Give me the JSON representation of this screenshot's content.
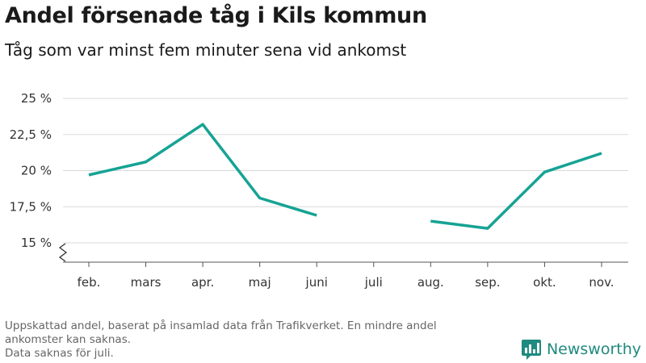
{
  "header": {
    "title": "Andel försenade tåg i Kils kommun",
    "subtitle": "Tåg som var minst fem minuter sena vid ankomst"
  },
  "chart_data": {
    "type": "line",
    "title": "Andel försenade tåg i Kils kommun",
    "subtitle": "Tåg som var minst fem minuter sena vid ankomst",
    "categories": [
      "feb.",
      "mars",
      "apr.",
      "maj",
      "juni",
      "juli",
      "aug.",
      "sep.",
      "okt.",
      "nov."
    ],
    "series": [
      {
        "values": [
          19.7,
          20.6,
          23.2,
          18.1,
          16.9,
          null,
          16.5,
          16.0,
          19.9,
          21.2
        ]
      }
    ],
    "y_ticks": [
      15,
      17.5,
      20,
      22.5,
      25
    ],
    "y_tick_labels": [
      "15 %",
      "17,5 %",
      "20 %",
      "22,5 %",
      "25 %"
    ],
    "ylim": [
      13.5,
      25
    ],
    "axis_break": true,
    "grid": true,
    "xlabel": "",
    "ylabel": "",
    "line_color": "#16a394"
  },
  "footnote": {
    "line1": "Uppskattad andel, baserat på insamlad data från Trafikverket. En mindre andel",
    "line2": "ankomster kan saknas.",
    "line3": "Data saknas för juli."
  },
  "brand": {
    "name": "Newsworthy",
    "color": "#1f8a7f",
    "icon": "bar-chart-logo-icon"
  }
}
